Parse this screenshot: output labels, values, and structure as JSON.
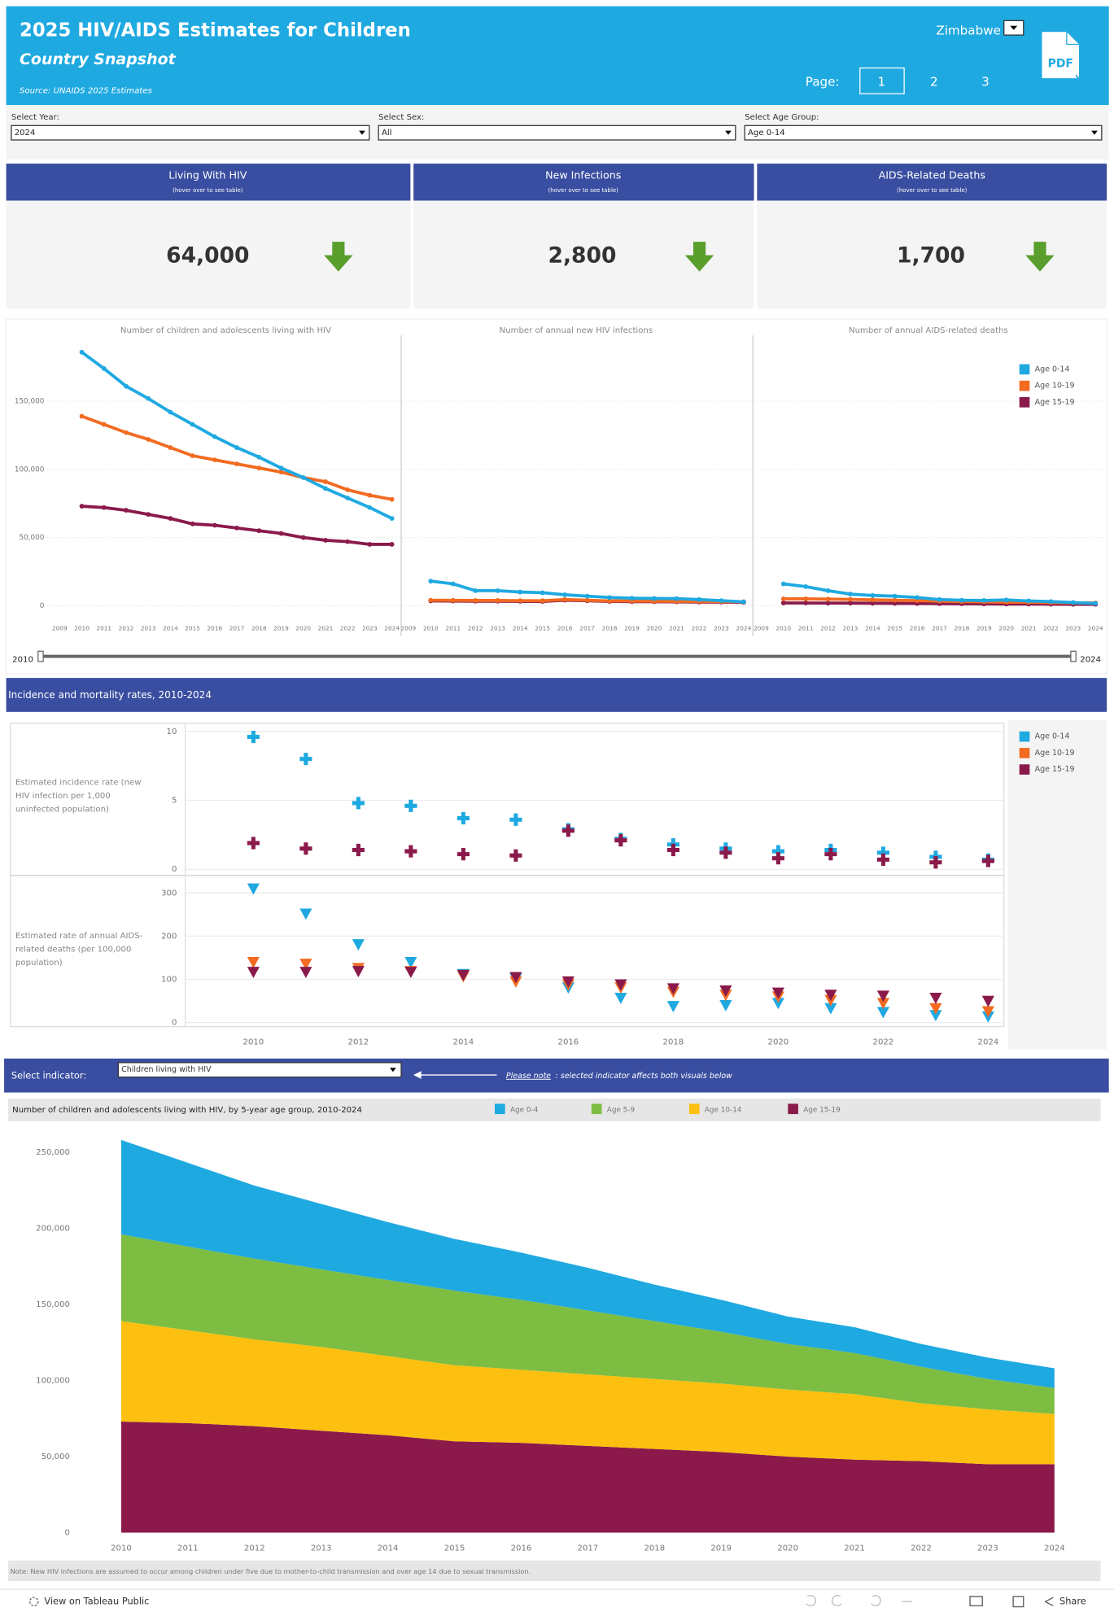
{
  "header": {
    "title": "2025 HIV/AIDS Estimates for Children",
    "subtitle": "Country Snapshot",
    "source": "Source: UNAIDS 2025 Estimates",
    "country": "Zimbabwe",
    "page_label": "Page:",
    "pages": [
      "1",
      "2",
      "3"
    ],
    "pdf": "PDF"
  },
  "filters": [
    {
      "label": "Select Year:",
      "value": "2024"
    },
    {
      "label": "Select Sex:",
      "value": "All"
    },
    {
      "label": "Select Age Group:",
      "value": "Age 0-14"
    }
  ],
  "kpis": [
    {
      "title": "Living With HIV",
      "hint": "(hover over to see table)",
      "value": "64,000"
    },
    {
      "title": "New Infections",
      "hint": "(hover over to see table)",
      "value": "2,800"
    },
    {
      "title": "AIDS-Related Deaths",
      "hint": "(hover over to see table)",
      "value": "1,700"
    }
  ],
  "slider": {
    "start": "2010",
    "end": "2024"
  },
  "section_title": "Incidence and mortality rates, 2010-2024",
  "indicator": {
    "label": "Select indicator:",
    "value": "Children living with HIV",
    "note_label": "Please note",
    "note_text": ": selected indicator affects both visuals below"
  },
  "note": "Note: New HIV infections are assumed to occur among children under five due to mother-to-child transmission and over age 14 due to sexual transmission.",
  "footer": {
    "link": "View on Tableau Public",
    "share": "Share"
  },
  "chart_data": [
    {
      "type": "line",
      "title": "Number of children and adolescents living with HIV",
      "x": [
        2010,
        2011,
        2012,
        2013,
        2014,
        2015,
        2016,
        2017,
        2018,
        2019,
        2020,
        2021,
        2022,
        2023,
        2024
      ],
      "xlim": [
        2009,
        2024
      ],
      "xticks": [
        2009,
        2010,
        2011,
        2012,
        2013,
        2014,
        2015,
        2016,
        2017,
        2018,
        2019,
        2020,
        2021,
        2022,
        2023,
        2024
      ],
      "ylim": [
        -10000,
        190000
      ],
      "yticks": [
        0,
        {
          "value": 50000,
          "label": "50,000"
        },
        {
          "value": 100000,
          "label": "100,000"
        },
        {
          "value": 150000,
          "label": "150,000"
        }
      ],
      "grid": true,
      "series": [
        {
          "name": "Age 0-14",
          "color": "#1fa9e1",
          "values": [
            186000,
            174000,
            161000,
            152000,
            142000,
            133000,
            124000,
            116000,
            109000,
            101000,
            94000,
            86000,
            79000,
            72000,
            64000
          ]
        },
        {
          "name": "Age 10-19",
          "color": "#f26b21",
          "values": [
            139000,
            133000,
            127000,
            122000,
            116000,
            110000,
            107000,
            104000,
            101000,
            98000,
            94000,
            91000,
            85000,
            81000,
            78000
          ]
        },
        {
          "name": "Age 15-19",
          "color": "#8b1a4b",
          "values": [
            73000,
            72000,
            70000,
            67000,
            64000,
            60000,
            59000,
            57000,
            55000,
            53000,
            50000,
            48000,
            47000,
            45000,
            45000
          ]
        }
      ]
    },
    {
      "type": "line",
      "title": "Number of annual new HIV infections",
      "x": [
        2010,
        2011,
        2012,
        2013,
        2014,
        2015,
        2016,
        2017,
        2018,
        2019,
        2020,
        2021,
        2022,
        2023,
        2024
      ],
      "xlim": [
        2009,
        2024
      ],
      "xticks": [
        2009,
        2010,
        2011,
        2012,
        2013,
        2014,
        2015,
        2016,
        2017,
        2018,
        2019,
        2020,
        2021,
        2022,
        2023,
        2024
      ],
      "ylim": [
        -10000,
        190000
      ],
      "series": [
        {
          "name": "Age 0-14",
          "color": "#1fa9e1",
          "values": [
            18000,
            16000,
            11000,
            11000,
            10000,
            9500,
            8000,
            7000,
            6000,
            5500,
            5300,
            5200,
            4500,
            3700,
            2800
          ]
        },
        {
          "name": "Age 10-19",
          "color": "#f26b21",
          "values": [
            4000,
            3900,
            3800,
            3800,
            3700,
            3600,
            4500,
            4000,
            3500,
            3400,
            3300,
            3200,
            3100,
            3000,
            2900
          ]
        },
        {
          "name": "Age 15-19",
          "color": "#8b1a4b",
          "values": [
            3500,
            3400,
            3300,
            3300,
            3200,
            3100,
            4000,
            3600,
            3100,
            3000,
            2900,
            2800,
            2700,
            2600,
            2500
          ]
        }
      ]
    },
    {
      "type": "line",
      "title": "Number of annual AIDS-related deaths",
      "x": [
        2010,
        2011,
        2012,
        2013,
        2014,
        2015,
        2016,
        2017,
        2018,
        2019,
        2020,
        2021,
        2022,
        2023,
        2024
      ],
      "xlim": [
        2009,
        2024
      ],
      "xticks": [
        2009,
        2010,
        2011,
        2012,
        2013,
        2014,
        2015,
        2016,
        2017,
        2018,
        2019,
        2020,
        2021,
        2022,
        2023,
        2024
      ],
      "ylim": [
        -10000,
        190000
      ],
      "legend": "top-right",
      "series": [
        {
          "name": "Age 0-14",
          "color": "#1fa9e1",
          "values": [
            16000,
            14000,
            11000,
            8500,
            7500,
            7000,
            6000,
            4500,
            4000,
            3800,
            4200,
            3500,
            3000,
            2300,
            1700
          ]
        },
        {
          "name": "Age 10-19",
          "color": "#f26b21",
          "values": [
            5000,
            5000,
            4800,
            4600,
            4300,
            4000,
            3700,
            3300,
            3000,
            2800,
            2600,
            2500,
            2300,
            2100,
            2000
          ]
        },
        {
          "name": "Age 15-19",
          "color": "#8b1a4b",
          "values": [
            2000,
            2000,
            1900,
            1900,
            1800,
            1700,
            1600,
            1500,
            1400,
            1300,
            1200,
            1200,
            1100,
            1000,
            1000
          ]
        }
      ]
    },
    {
      "type": "scatter",
      "marker": "cross",
      "y_label": "Estimated incidence rate (new HIV infection per 1,000 uninfected population)",
      "x": [
        2010,
        2011,
        2012,
        2013,
        2014,
        2015,
        2016,
        2017,
        2018,
        2019,
        2020,
        2021,
        2022,
        2023,
        2024
      ],
      "xlim": [
        2008.7,
        2024.3
      ],
      "ylim": [
        0,
        10.4
      ],
      "yticks": [
        0,
        5,
        10
      ],
      "grid": true,
      "series": [
        {
          "name": "Age 0-14",
          "color": "#1fa9e1",
          "values": [
            9.6,
            8.0,
            4.8,
            4.6,
            3.7,
            3.6,
            2.9,
            2.2,
            1.8,
            1.5,
            1.3,
            1.4,
            1.2,
            0.9,
            0.7
          ]
        },
        {
          "name": "Age 15-19",
          "color": "#8b1a4b",
          "values": [
            1.9,
            1.5,
            1.4,
            1.3,
            1.1,
            1.0,
            2.8,
            2.1,
            1.4,
            1.2,
            0.8,
            1.1,
            0.7,
            0.5,
            0.6
          ]
        }
      ]
    },
    {
      "type": "scatter",
      "marker": "triangle",
      "y_label": "Estimated rate of annual AIDS-related deaths (per 100,000 population)",
      "x": [
        2010,
        2011,
        2012,
        2013,
        2014,
        2015,
        2016,
        2017,
        2018,
        2019,
        2020,
        2021,
        2022,
        2023,
        2024
      ],
      "xlim": [
        2008.7,
        2024.3
      ],
      "xticks": [
        2010,
        2012,
        2014,
        2016,
        2018,
        2020,
        2022,
        2024
      ],
      "ylim": [
        0,
        330
      ],
      "yticks": [
        0,
        100,
        200,
        300
      ],
      "grid": true,
      "legend": "top-right",
      "series": [
        {
          "name": "Age 0-14",
          "color": "#1fa9e1",
          "values": [
            310,
            252,
            181,
            140,
            112,
            102,
            81,
            57,
            38,
            40,
            45,
            33,
            24,
            17,
            14
          ]
        },
        {
          "name": "Age 10-19",
          "color": "#f26b21",
          "values": [
            140,
            136,
            126,
            119,
            107,
            95,
            88,
            81,
            71,
            64,
            60,
            52,
            45,
            33,
            26
          ]
        },
        {
          "name": "Age 15-19",
          "color": "#8b1a4b",
          "values": [
            117,
            117,
            119,
            117,
            110,
            105,
            95,
            88,
            79,
            74,
            69,
            64,
            62,
            57,
            50
          ]
        }
      ]
    },
    {
      "type": "area",
      "stacked": true,
      "title": "Number of children and adolescents living with HIV, by 5-year age group, 2010-2024",
      "x": [
        2010,
        2011,
        2012,
        2013,
        2014,
        2015,
        2016,
        2017,
        2018,
        2019,
        2020,
        2021,
        2022,
        2023,
        2024
      ],
      "xlim": [
        2009.2,
        2024.6
      ],
      "xticks": [
        2010,
        2011,
        2012,
        2013,
        2014,
        2015,
        2016,
        2017,
        2018,
        2019,
        2020,
        2021,
        2022,
        2023,
        2024
      ],
      "ylim": [
        -3000,
        265000
      ],
      "yticks": [
        0,
        {
          "value": 50000,
          "label": "50,000"
        },
        {
          "value": 100000,
          "label": "100,000"
        },
        {
          "value": 150000,
          "label": "150,000"
        },
        {
          "value": 200000,
          "label": "200,000"
        },
        {
          "value": 250000,
          "label": "250,000"
        }
      ],
      "series": [
        {
          "name": "Age 0-4",
          "color": "#1fa9e1",
          "values": [
            62000,
            55000,
            48000,
            43000,
            38000,
            34000,
            31000,
            28000,
            24000,
            21000,
            18000,
            17000,
            15000,
            14000,
            13000
          ]
        },
        {
          "name": "Age 5-9",
          "color": "#7dbd42",
          "values": [
            57000,
            55000,
            53000,
            51000,
            50000,
            49000,
            46000,
            42000,
            38000,
            34000,
            30000,
            27000,
            24000,
            20000,
            17000
          ]
        },
        {
          "name": "Age 10-14",
          "color": "#fdc010",
          "values": [
            66000,
            61000,
            57000,
            55000,
            52000,
            50000,
            48000,
            47000,
            46000,
            45000,
            44000,
            43000,
            38000,
            36000,
            33000
          ]
        },
        {
          "name": "Age 15-19",
          "color": "#8b1a4b",
          "values": [
            73000,
            72000,
            70000,
            67000,
            64000,
            60000,
            59000,
            57000,
            55000,
            53000,
            50000,
            48000,
            47000,
            45000,
            45000
          ]
        }
      ]
    }
  ]
}
